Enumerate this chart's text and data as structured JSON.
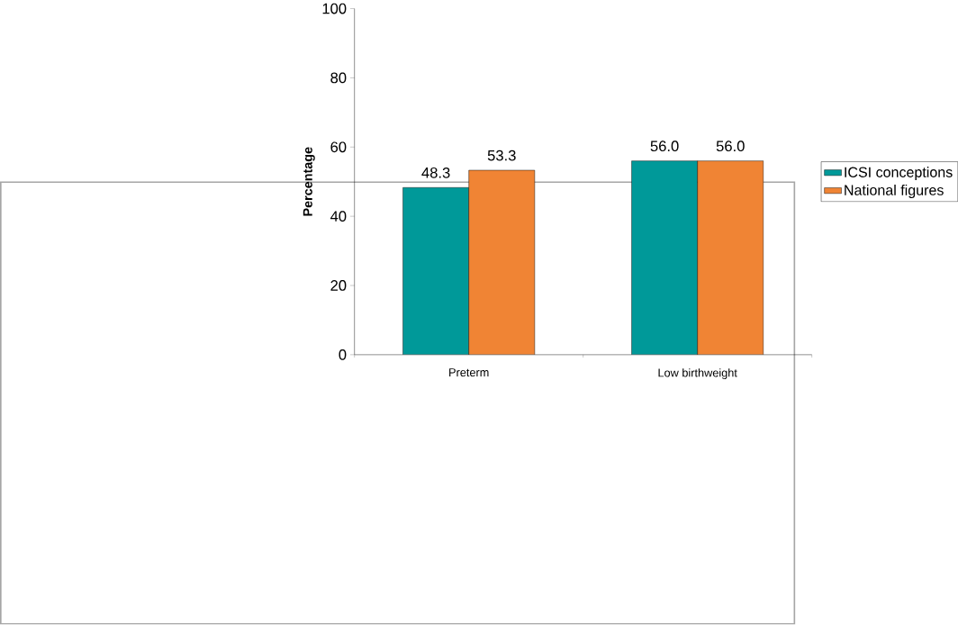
{
  "chart_data": {
    "type": "bar",
    "ylabel": "Percentage",
    "categories": [
      "Preterm",
      "Low birthweight"
    ],
    "series": [
      {
        "name": "ICSI conceptions",
        "color": "#009999",
        "values": [
          48.3,
          56.0
        ],
        "value_labels": [
          "48.3",
          "56.0"
        ]
      },
      {
        "name": "National figures",
        "color": "#f08434",
        "values": [
          53.3,
          56.0
        ],
        "value_labels": [
          "53.3",
          "56.0"
        ]
      }
    ],
    "ylim": [
      0,
      100
    ],
    "yticks": [
      0,
      20,
      40,
      60,
      80,
      100
    ],
    "legend": "right"
  }
}
